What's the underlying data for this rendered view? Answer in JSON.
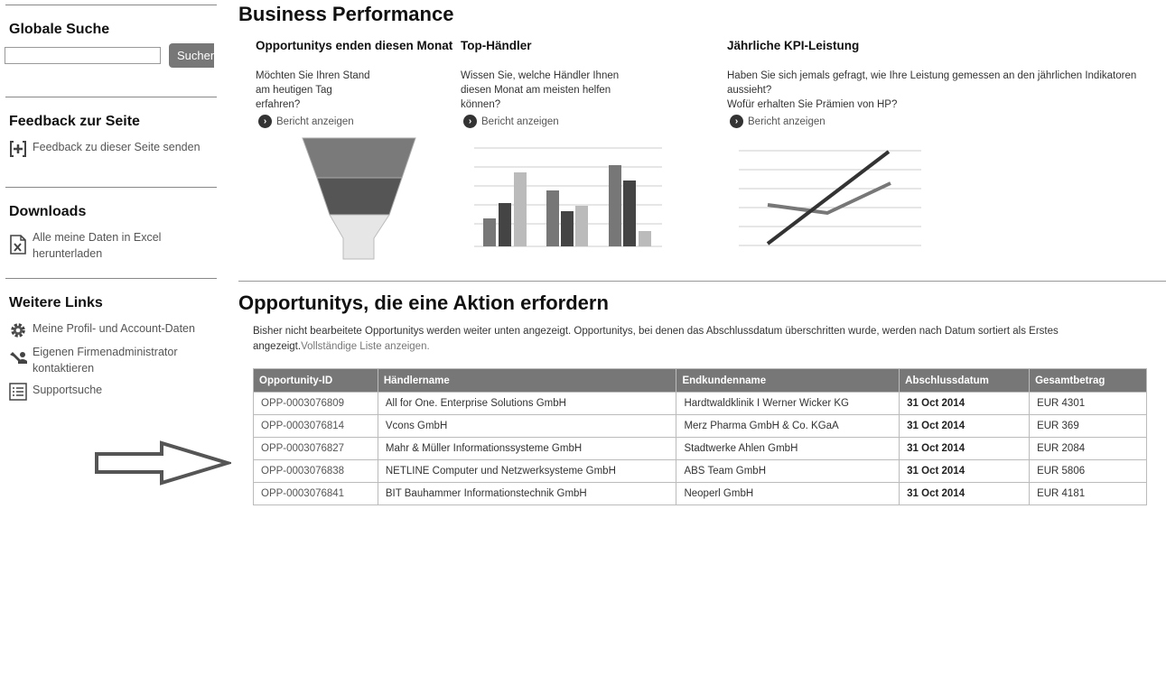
{
  "sidebar": {
    "search": {
      "title": "Globale Suche",
      "placeholder": "",
      "button": "Suchen"
    },
    "feedback": {
      "title": "Feedback zur Seite",
      "link": "Feedback zu dieser Seite senden"
    },
    "downloads": {
      "title": "Downloads",
      "link_line1": "Alle meine Daten in Excel",
      "link_line2": "herunterladen"
    },
    "links": {
      "title": "Weitere Links",
      "profile": "Meine Profil- und Account-Daten",
      "admin_line1": "Eigenen Firmenadministrator",
      "admin_line2": "kontaktieren",
      "support": "Supportsuche"
    }
  },
  "business": {
    "title": "Business Performance",
    "report_link": "Bericht anzeigen",
    "col1": {
      "title": "Opportunitys enden diesen Monat",
      "l1": "Möchten Sie Ihren Stand",
      "l2": "am heutigen Tag",
      "l3": "erfahren?"
    },
    "col2": {
      "title": "Top-Händler",
      "l1": "Wissen Sie, welche Händler Ihnen",
      "l2": "diesen Monat am meisten helfen",
      "l3": "können?"
    },
    "col3": {
      "title": "Jährliche KPI-Leistung",
      "l1": "Haben Sie sich jemals gefragt, wie Ihre Leistung gemessen an den jährlichen Indikatoren",
      "l2": "aussieht?",
      "l3": "Wofür erhalten Sie Prämien von HP?"
    }
  },
  "opportunities": {
    "title": "Opportunitys, die eine Aktion erfordern",
    "intro": "Bisher nicht bearbeitete Opportunitys werden weiter unten angezeigt. Opportunitys, bei denen das Abschlussdatum überschritten wurde, werden nach Datum sortiert als Erstes angezeigt.",
    "full_list_link": "Vollständige Liste anzeigen.",
    "columns": [
      "Opportunity-ID",
      "Händlername",
      "Endkundenname",
      "Abschlussdatum",
      "Gesamtbetrag"
    ],
    "rows": [
      [
        "OPP-0003076809",
        "All for One. Enterprise Solutions GmbH",
        "Hardtwaldklinik I Werner Wicker KG",
        "31 Oct 2014",
        "EUR 4301"
      ],
      [
        "OPP-0003076814",
        "Vcons GmbH",
        "Merz Pharma GmbH & Co. KGaA",
        "31 Oct 2014",
        "EUR 369"
      ],
      [
        "OPP-0003076827",
        "Mahr & Müller Informationssysteme GmbH",
        "Stadtwerke Ahlen GmbH",
        "31 Oct 2014",
        "EUR 2084"
      ],
      [
        "OPP-0003076838",
        "NETLINE Computer und Netzwerksysteme GmbH",
        "ABS Team GmbH",
        "31 Oct 2014",
        "EUR 5806"
      ],
      [
        "OPP-0003076841",
        "BIT Bauhammer Informationstechnik GmbH",
        "Neoperl GmbH",
        "31 Oct 2014",
        "EUR 4181"
      ]
    ]
  },
  "colors": {
    "header_gray": "#777777",
    "text": "#333333",
    "divider": "#999999"
  }
}
